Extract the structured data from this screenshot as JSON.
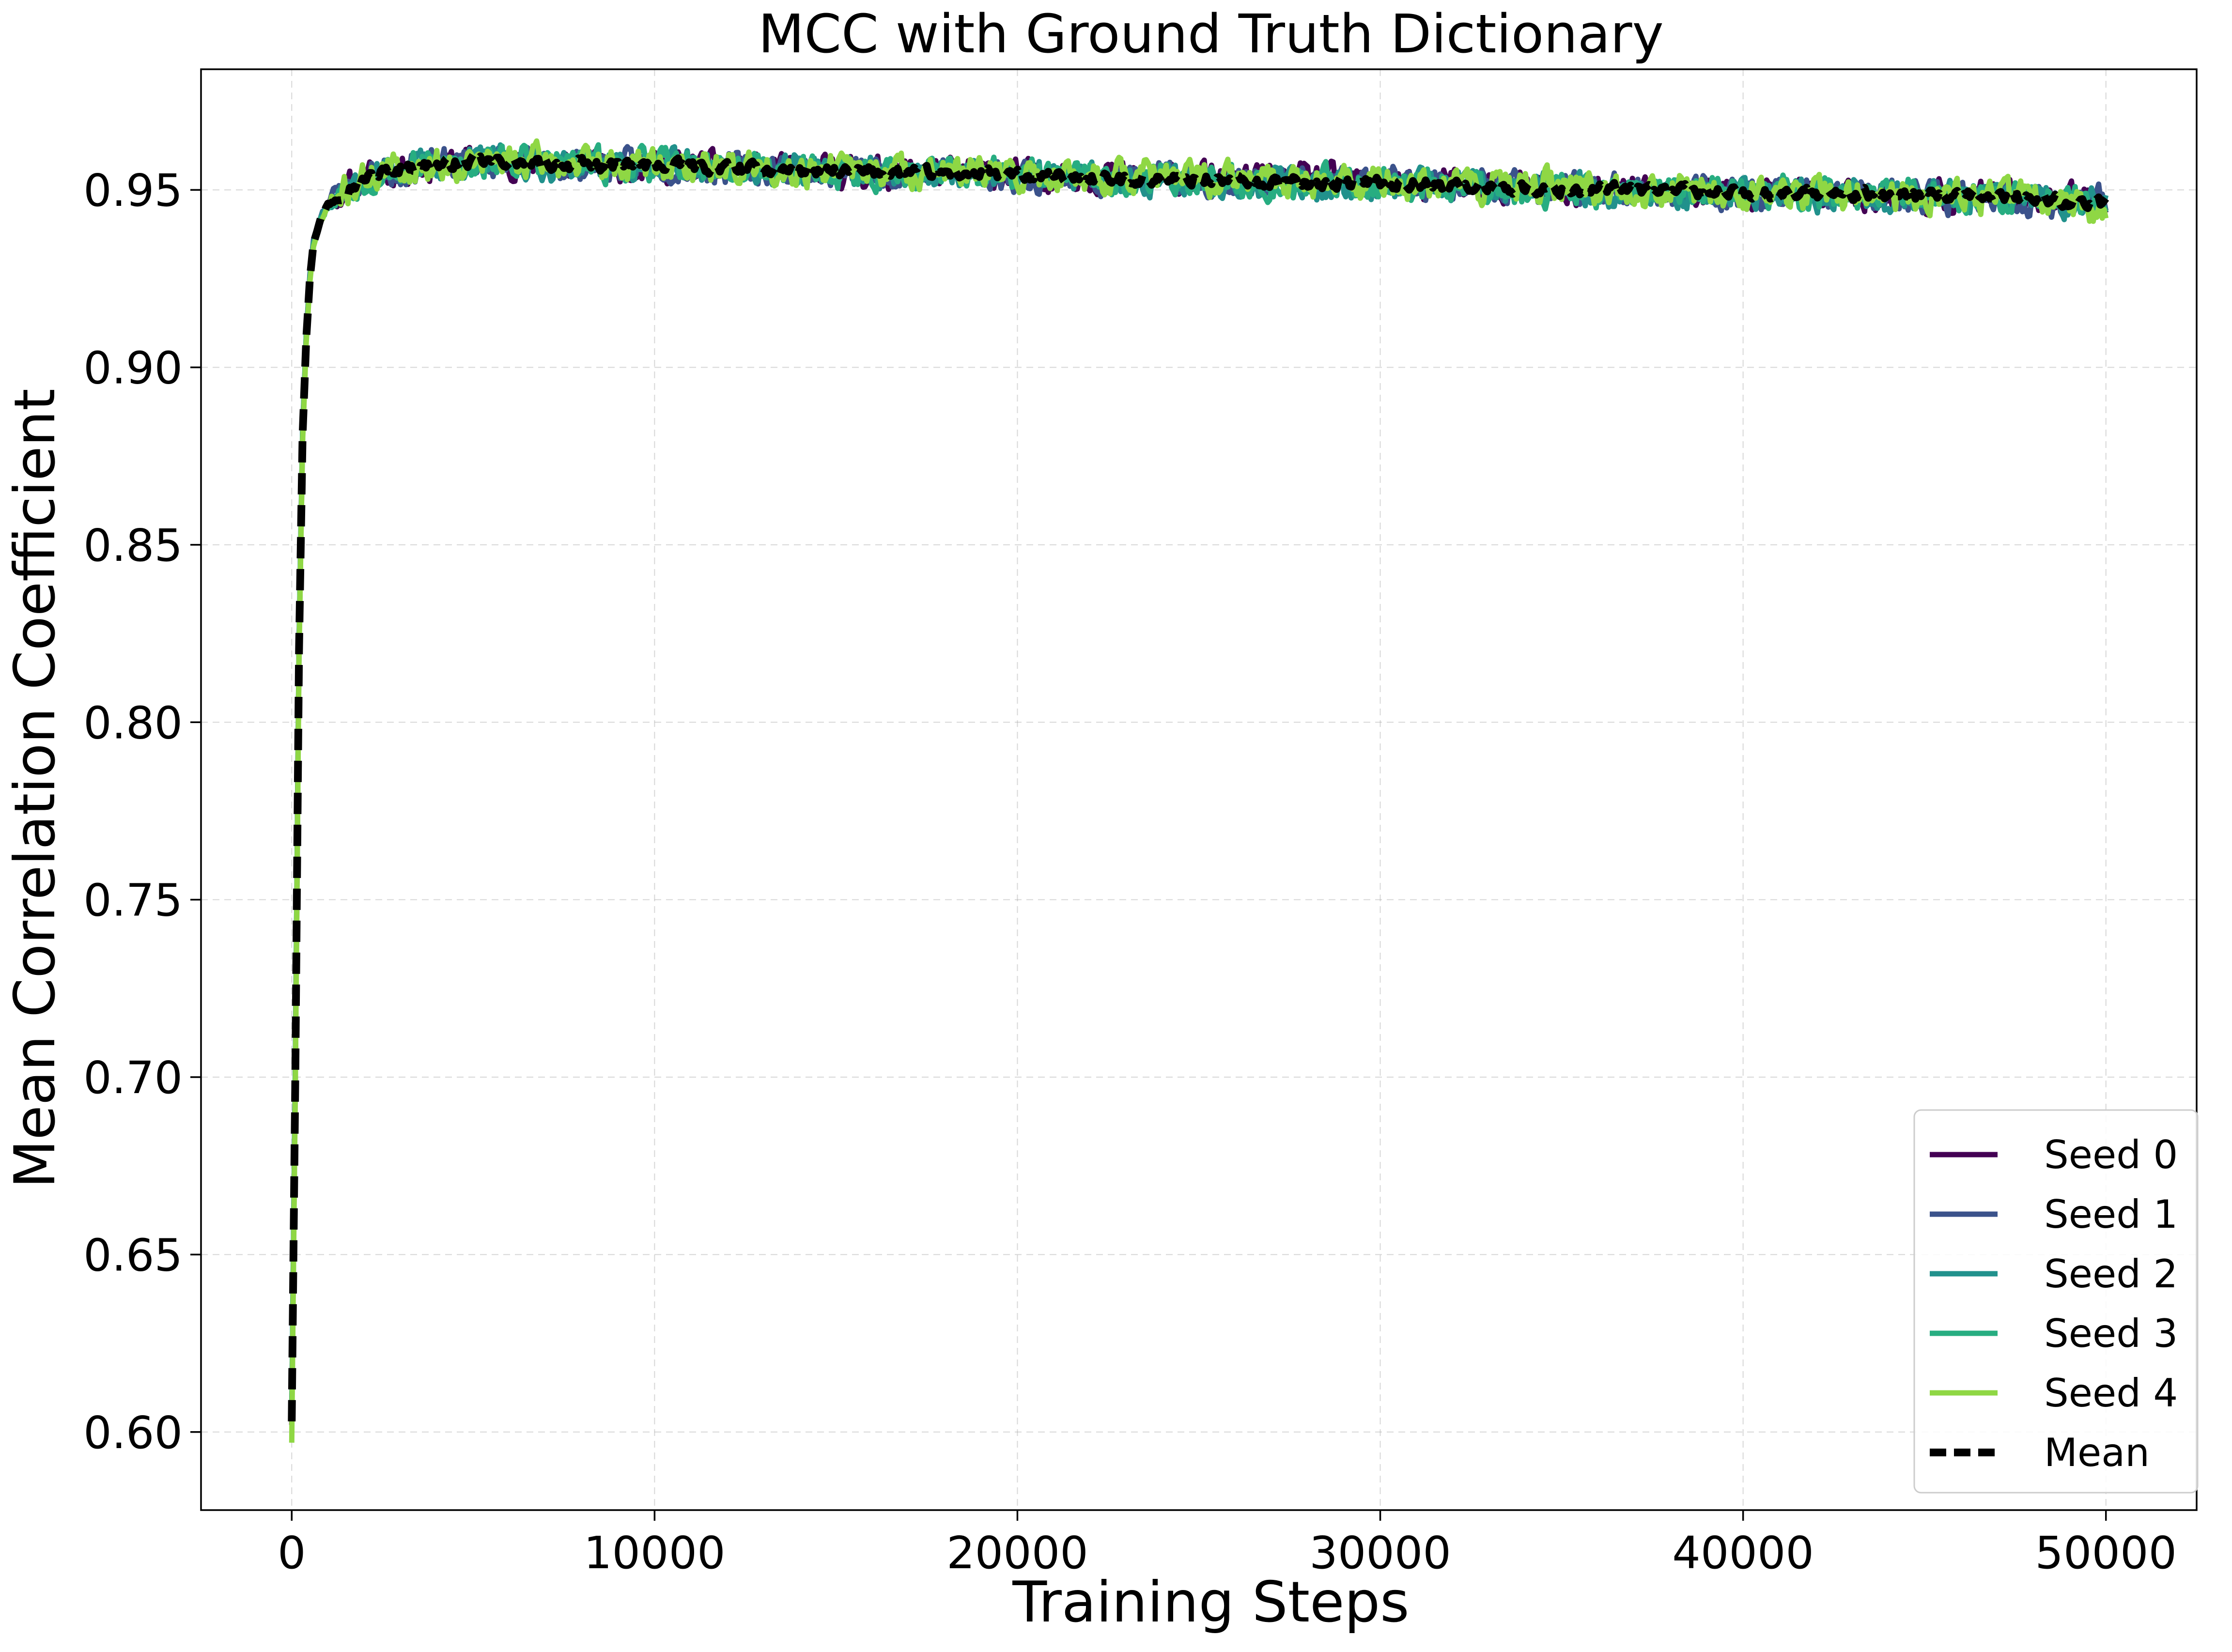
{
  "chart_data": {
    "type": "line",
    "title": "MCC with Ground Truth Dictionary",
    "xlabel": "Training Steps",
    "ylabel": "Mean Correlation Coefficient",
    "xlim": [
      -2500,
      52500
    ],
    "ylim": [
      0.578,
      0.984
    ],
    "xticks": [
      0,
      10000,
      20000,
      30000,
      40000,
      50000
    ],
    "xtick_labels": [
      "0",
      "10000",
      "20000",
      "30000",
      "40000",
      "50000"
    ],
    "yticks": [
      0.6,
      0.65,
      0.7,
      0.75,
      0.8,
      0.85,
      0.9,
      0.95
    ],
    "ytick_labels": [
      "0.60",
      "0.65",
      "0.70",
      "0.75",
      "0.80",
      "0.85",
      "0.90",
      "0.95"
    ],
    "grid": true,
    "legend_position": "lower-right",
    "x": [
      0,
      100,
      200,
      300,
      400,
      500,
      600,
      800,
      1000,
      1500,
      2000,
      2500,
      3000,
      4000,
      5000,
      6000,
      7000,
      8000,
      9000,
      10000,
      12500,
      15000,
      17500,
      20000,
      22500,
      25000,
      27500,
      30000,
      32500,
      35000,
      37500,
      40000,
      42500,
      45000,
      47500,
      50000
    ],
    "series": [
      {
        "name": "Seed 0",
        "color": "#440154",
        "width": 11,
        "dash": "",
        "values": [
          0.602,
          0.7,
          0.82,
          0.88,
          0.908,
          0.925,
          0.935,
          0.942,
          0.946,
          0.95,
          0.953,
          0.955,
          0.956,
          0.957,
          0.958,
          0.958,
          0.957,
          0.957,
          0.957,
          0.957,
          0.956,
          0.955,
          0.955,
          0.954,
          0.954,
          0.953,
          0.953,
          0.952,
          0.951,
          0.95,
          0.95,
          0.949,
          0.949,
          0.948,
          0.948,
          0.947
        ],
        "noise": 0.0065,
        "seed": 11
      },
      {
        "name": "Seed 1",
        "color": "#3b528b",
        "width": 11,
        "dash": "",
        "values": [
          0.605,
          0.705,
          0.822,
          0.882,
          0.909,
          0.926,
          0.936,
          0.943,
          0.947,
          0.951,
          0.953,
          0.955,
          0.956,
          0.957,
          0.958,
          0.958,
          0.957,
          0.957,
          0.957,
          0.957,
          0.956,
          0.955,
          0.955,
          0.954,
          0.953,
          0.953,
          0.952,
          0.952,
          0.951,
          0.95,
          0.95,
          0.949,
          0.948,
          0.948,
          0.947,
          0.947
        ],
        "noise": 0.0065,
        "seed": 23
      },
      {
        "name": "Seed 2",
        "color": "#21918c",
        "width": 11,
        "dash": "",
        "values": [
          0.603,
          0.702,
          0.821,
          0.881,
          0.908,
          0.925,
          0.935,
          0.942,
          0.946,
          0.95,
          0.953,
          0.955,
          0.956,
          0.957,
          0.958,
          0.958,
          0.957,
          0.957,
          0.957,
          0.957,
          0.956,
          0.955,
          0.954,
          0.954,
          0.953,
          0.953,
          0.952,
          0.951,
          0.951,
          0.95,
          0.949,
          0.949,
          0.948,
          0.948,
          0.947,
          0.946
        ],
        "noise": 0.0065,
        "seed": 37
      },
      {
        "name": "Seed 3",
        "color": "#27ad81",
        "width": 11,
        "dash": "",
        "values": [
          0.604,
          0.703,
          0.821,
          0.881,
          0.909,
          0.925,
          0.935,
          0.942,
          0.946,
          0.95,
          0.953,
          0.955,
          0.956,
          0.957,
          0.958,
          0.958,
          0.958,
          0.957,
          0.957,
          0.957,
          0.956,
          0.955,
          0.955,
          0.954,
          0.953,
          0.953,
          0.952,
          0.952,
          0.951,
          0.95,
          0.95,
          0.949,
          0.949,
          0.948,
          0.948,
          0.947
        ],
        "noise": 0.007,
        "seed": 53
      },
      {
        "name": "Seed 4",
        "color": "#8fd744",
        "width": 11,
        "dash": "",
        "values": [
          0.597,
          0.698,
          0.818,
          0.879,
          0.907,
          0.924,
          0.934,
          0.941,
          0.945,
          0.95,
          0.953,
          0.955,
          0.956,
          0.957,
          0.958,
          0.958,
          0.958,
          0.957,
          0.957,
          0.957,
          0.956,
          0.956,
          0.955,
          0.954,
          0.954,
          0.953,
          0.953,
          0.952,
          0.951,
          0.951,
          0.95,
          0.949,
          0.949,
          0.948,
          0.948,
          0.944
        ],
        "noise": 0.007,
        "seed": 71
      },
      {
        "name": "Mean",
        "color": "#000000",
        "width": 16,
        "dash": "44 22",
        "values": [
          0.603,
          0.702,
          0.82,
          0.881,
          0.908,
          0.925,
          0.935,
          0.942,
          0.946,
          0.95,
          0.953,
          0.955,
          0.956,
          0.957,
          0.958,
          0.958,
          0.957,
          0.957,
          0.957,
          0.957,
          0.956,
          0.955,
          0.955,
          0.954,
          0.953,
          0.953,
          0.952,
          0.952,
          0.951,
          0.95,
          0.95,
          0.949,
          0.949,
          0.948,
          0.948,
          0.946
        ],
        "noise": 0.0025,
        "seed": 97
      }
    ]
  }
}
